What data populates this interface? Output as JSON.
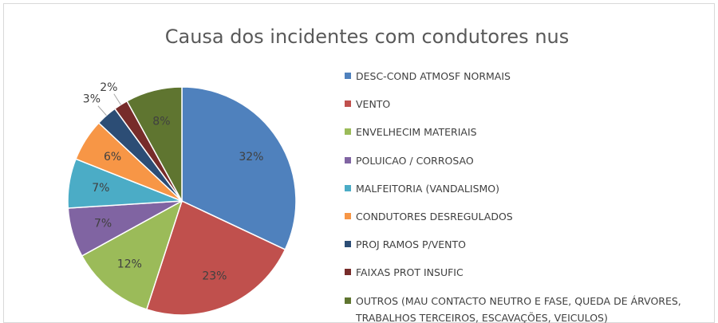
{
  "chart_data": {
    "type": "pie",
    "title": "Causa dos incidentes com condutores nus",
    "categories": [
      "DESC-COND ATMOSF NORMAIS",
      "VENTO",
      "ENVELHECIM MATERIAIS",
      "POLUICAO / CORROSAO",
      "MALFEITORIA (VANDALISMO)",
      "CONDUTORES DESREGULADOS",
      "PROJ RAMOS P/VENTO",
      "FAIXAS PROT INSUFIC",
      "OUTROS (MAU CONTACTO NEUTRO E FASE, QUEDA DE ÁRVORES, TRABALHOS TERCEIROS, ESCAVAÇÕES, VEICULOS)"
    ],
    "values": [
      32,
      23,
      12,
      7,
      7,
      6,
      3,
      2,
      8
    ],
    "value_labels": [
      "32%",
      "23%",
      "12%",
      "7%",
      "7%",
      "6%",
      "3%",
      "2%",
      "8%"
    ],
    "colors": [
      "#4f81bd",
      "#c0504d",
      "#9bbb59",
      "#8064a2",
      "#4bacc6",
      "#f79646",
      "#2c4d75",
      "#772c2a",
      "#5f7530"
    ],
    "legend": "right"
  }
}
